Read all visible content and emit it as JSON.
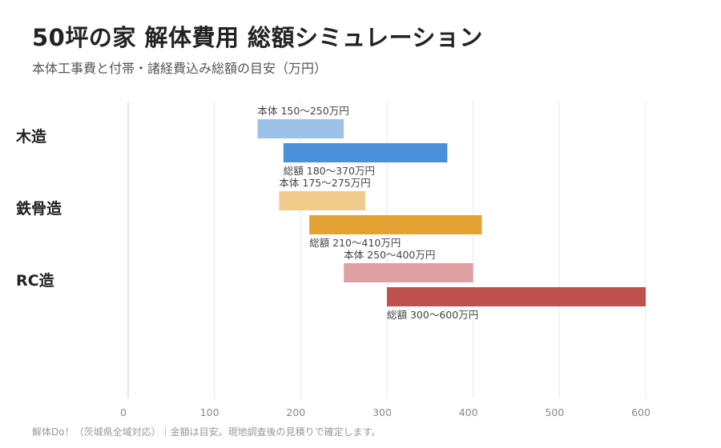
{
  "title": "50坪の家 解体費用 総額シミュレーション",
  "subtitle": "本体工事費と付帯・諸経費込み総額の目安（万円）",
  "footer": "解体Do！（茨城県全域対応）｜金額は目安。現地調査後の見積りで確定します。",
  "chart_data": {
    "type": "bar",
    "orientation": "horizontal-range",
    "categories": [
      "木造",
      "鉄骨造",
      "RC造"
    ],
    "xlim": [
      0,
      600
    ],
    "xticks": [
      0,
      100,
      200,
      300,
      400,
      500,
      600
    ],
    "grid": true,
    "rows": [
      {
        "category": "木造",
        "main": {
          "range": [
            150,
            250
          ],
          "label": "本体 150〜250万円",
          "color": "#9dc2ea"
        },
        "total": {
          "range": [
            180,
            370
          ],
          "label": "総額 180〜370万円",
          "color": "#4a8fd9"
        }
      },
      {
        "category": "鉄骨造",
        "main": {
          "range": [
            175,
            275
          ],
          "label": "本体 175〜275万円",
          "color": "#f0cb8b"
        },
        "total": {
          "range": [
            210,
            410
          ],
          "label": "総額 210〜410万円",
          "color": "#e3a232"
        }
      },
      {
        "category": "RC造",
        "main": {
          "range": [
            250,
            400
          ],
          "label": "本体 250〜400万円",
          "color": "#dea0a0"
        },
        "total": {
          "range": [
            300,
            600
          ],
          "label": "総額 300〜600万円",
          "color": "#c0504d"
        }
      }
    ]
  }
}
